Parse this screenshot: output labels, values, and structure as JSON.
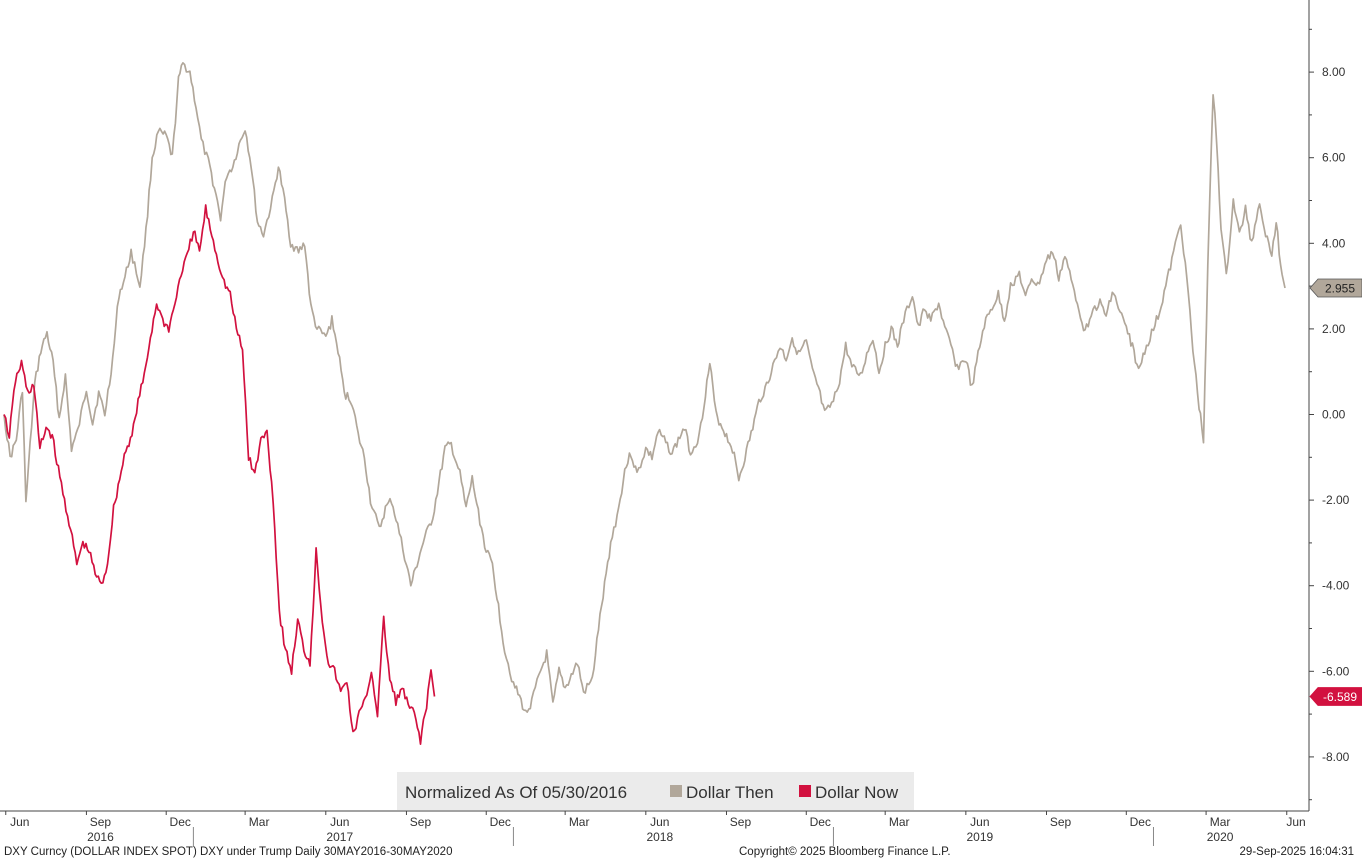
{
  "chart_data": {
    "type": "line",
    "y_ticks": [
      "8.00",
      "6.00",
      "4.00",
      "2.00",
      "0.00",
      "-2.00",
      "-4.00",
      "-6.00",
      "-8.00"
    ],
    "ylim": [
      -9.0,
      9.6
    ],
    "grid": false,
    "x_months": [
      "Jun",
      "Sep",
      "Dec",
      "Mar",
      "Jun",
      "Sep",
      "Dec",
      "Mar",
      "Jun",
      "Sep",
      "Dec",
      "Mar",
      "Jun",
      "Sep",
      "Dec",
      "Mar",
      "Jun"
    ],
    "x_years": [
      "2016",
      "2017",
      "2018",
      "2019",
      "2020"
    ],
    "legend": {
      "title": "Normalized As Of 05/30/2016",
      "placement": "bottom-center",
      "entries": [
        "Dollar Then",
        "Dollar Now"
      ]
    },
    "series": [
      {
        "name": "Dollar Then",
        "color": "#b1a79a",
        "last_value_label": "2.955",
        "points": [
          [
            "2016-05-30",
            0.0
          ],
          [
            "2016-06-06",
            -1.0
          ],
          [
            "2016-06-13",
            -0.6
          ],
          [
            "2016-06-20",
            0.6
          ],
          [
            "2016-06-24",
            -2.1
          ],
          [
            "2016-06-27",
            -1.2
          ],
          [
            "2016-07-04",
            0.7
          ],
          [
            "2016-07-11",
            1.5
          ],
          [
            "2016-07-18",
            1.9
          ],
          [
            "2016-07-25",
            1.2
          ],
          [
            "2016-08-01",
            -0.1
          ],
          [
            "2016-08-08",
            0.9
          ],
          [
            "2016-08-15",
            -0.8
          ],
          [
            "2016-08-22",
            -0.4
          ],
          [
            "2016-09-01",
            0.6
          ],
          [
            "2016-09-08",
            -0.2
          ],
          [
            "2016-09-15",
            0.5
          ],
          [
            "2016-09-22",
            0.0
          ],
          [
            "2016-10-01",
            1.3
          ],
          [
            "2016-10-08",
            2.8
          ],
          [
            "2016-10-15",
            3.2
          ],
          [
            "2016-10-22",
            3.8
          ],
          [
            "2016-11-01",
            3.0
          ],
          [
            "2016-11-08",
            4.3
          ],
          [
            "2016-11-15",
            6.0
          ],
          [
            "2016-11-22",
            6.6
          ],
          [
            "2016-12-01",
            6.5
          ],
          [
            "2016-12-08",
            6.0
          ],
          [
            "2016-12-15",
            7.8
          ],
          [
            "2016-12-20",
            8.2
          ],
          [
            "2016-12-28",
            8.0
          ],
          [
            "2017-01-04",
            7.2
          ],
          [
            "2017-01-10",
            6.4
          ],
          [
            "2017-01-18",
            5.9
          ],
          [
            "2017-01-25",
            5.3
          ],
          [
            "2017-02-01",
            4.6
          ],
          [
            "2017-02-08",
            5.6
          ],
          [
            "2017-02-15",
            5.8
          ],
          [
            "2017-02-22",
            6.3
          ],
          [
            "2017-03-01",
            6.7
          ],
          [
            "2017-03-08",
            5.8
          ],
          [
            "2017-03-15",
            4.5
          ],
          [
            "2017-03-22",
            4.2
          ],
          [
            "2017-04-01",
            5.0
          ],
          [
            "2017-04-08",
            5.8
          ],
          [
            "2017-04-15",
            5.0
          ],
          [
            "2017-04-22",
            4.0
          ],
          [
            "2017-05-01",
            3.8
          ],
          [
            "2017-05-08",
            4.0
          ],
          [
            "2017-05-15",
            2.5
          ],
          [
            "2017-05-22",
            2.0
          ],
          [
            "2017-06-01",
            1.8
          ],
          [
            "2017-06-08",
            2.2
          ],
          [
            "2017-06-15",
            1.5
          ],
          [
            "2017-06-22",
            0.5
          ],
          [
            "2017-07-01",
            0.3
          ],
          [
            "2017-07-08",
            -0.5
          ],
          [
            "2017-07-15",
            -1.0
          ],
          [
            "2017-07-22",
            -2.0
          ],
          [
            "2017-08-01",
            -2.7
          ],
          [
            "2017-08-08",
            -2.2
          ],
          [
            "2017-08-15",
            -2.0
          ],
          [
            "2017-08-22",
            -2.6
          ],
          [
            "2017-09-01",
            -3.5
          ],
          [
            "2017-09-06",
            -4.0
          ],
          [
            "2017-09-13",
            -3.5
          ],
          [
            "2017-09-20",
            -3.0
          ],
          [
            "2017-10-01",
            -2.4
          ],
          [
            "2017-10-08",
            -1.6
          ],
          [
            "2017-10-15",
            -0.8
          ],
          [
            "2017-10-22",
            -0.7
          ],
          [
            "2017-11-01",
            -1.4
          ],
          [
            "2017-11-08",
            -2.2
          ],
          [
            "2017-11-15",
            -1.5
          ],
          [
            "2017-11-22",
            -2.3
          ],
          [
            "2017-12-01",
            -3.2
          ],
          [
            "2017-12-08",
            -3.5
          ],
          [
            "2017-12-15",
            -4.5
          ],
          [
            "2017-12-22",
            -5.5
          ],
          [
            "2018-01-01",
            -6.3
          ],
          [
            "2018-01-08",
            -6.6
          ],
          [
            "2018-01-15",
            -7.0
          ],
          [
            "2018-01-22",
            -6.7
          ],
          [
            "2018-02-01",
            -6.0
          ],
          [
            "2018-02-08",
            -5.6
          ],
          [
            "2018-02-15",
            -6.8
          ],
          [
            "2018-02-22",
            -6.0
          ],
          [
            "2018-03-01",
            -6.4
          ],
          [
            "2018-03-08",
            -6.1
          ],
          [
            "2018-03-15",
            -5.8
          ],
          [
            "2018-03-22",
            -6.5
          ],
          [
            "2018-04-01",
            -6.2
          ],
          [
            "2018-04-08",
            -5.0
          ],
          [
            "2018-04-15",
            -4.0
          ],
          [
            "2018-04-22",
            -3.0
          ],
          [
            "2018-05-01",
            -2.2
          ],
          [
            "2018-05-08",
            -1.3
          ],
          [
            "2018-05-15",
            -0.9
          ],
          [
            "2018-05-22",
            -1.4
          ],
          [
            "2018-06-01",
            -0.8
          ],
          [
            "2018-06-08",
            -1.0
          ],
          [
            "2018-06-15",
            -0.4
          ],
          [
            "2018-06-22",
            -0.6
          ],
          [
            "2018-07-01",
            -0.9
          ],
          [
            "2018-07-08",
            -0.6
          ],
          [
            "2018-07-15",
            -0.3
          ],
          [
            "2018-07-22",
            -0.9
          ],
          [
            "2018-08-01",
            -0.5
          ],
          [
            "2018-08-08",
            0.5
          ],
          [
            "2018-08-13",
            1.2
          ],
          [
            "2018-08-20",
            0.0
          ],
          [
            "2018-09-01",
            -0.5
          ],
          [
            "2018-09-08",
            -0.8
          ],
          [
            "2018-09-15",
            -1.5
          ],
          [
            "2018-09-22",
            -1.0
          ],
          [
            "2018-10-01",
            -0.3
          ],
          [
            "2018-10-08",
            0.3
          ],
          [
            "2018-10-15",
            0.6
          ],
          [
            "2018-10-22",
            1.0
          ],
          [
            "2018-11-01",
            1.6
          ],
          [
            "2018-11-08",
            1.3
          ],
          [
            "2018-11-15",
            1.8
          ],
          [
            "2018-11-22",
            1.4
          ],
          [
            "2018-12-01",
            1.7
          ],
          [
            "2018-12-08",
            1.0
          ],
          [
            "2018-12-15",
            0.6
          ],
          [
            "2018-12-22",
            0.0
          ],
          [
            "2019-01-01",
            0.3
          ],
          [
            "2019-01-08",
            0.8
          ],
          [
            "2019-01-15",
            1.6
          ],
          [
            "2019-01-22",
            1.1
          ],
          [
            "2019-02-01",
            0.9
          ],
          [
            "2019-02-08",
            1.4
          ],
          [
            "2019-02-15",
            1.8
          ],
          [
            "2019-02-22",
            1.0
          ],
          [
            "2019-03-01",
            1.6
          ],
          [
            "2019-03-08",
            2.0
          ],
          [
            "2019-03-15",
            1.6
          ],
          [
            "2019-03-22",
            2.2
          ],
          [
            "2019-04-01",
            2.8
          ],
          [
            "2019-04-08",
            2.0
          ],
          [
            "2019-04-15",
            2.5
          ],
          [
            "2019-04-22",
            2.2
          ],
          [
            "2019-05-01",
            2.6
          ],
          [
            "2019-05-08",
            2.0
          ],
          [
            "2019-05-15",
            1.6
          ],
          [
            "2019-05-22",
            1.1
          ],
          [
            "2019-06-01",
            1.3
          ],
          [
            "2019-06-08",
            0.6
          ],
          [
            "2019-06-15",
            1.4
          ],
          [
            "2019-06-22",
            2.1
          ],
          [
            "2019-07-01",
            2.5
          ],
          [
            "2019-07-08",
            2.8
          ],
          [
            "2019-07-15",
            2.2
          ],
          [
            "2019-07-22",
            3.0
          ],
          [
            "2019-08-01",
            3.3
          ],
          [
            "2019-08-08",
            2.7
          ],
          [
            "2019-08-15",
            3.2
          ],
          [
            "2019-08-22",
            3.0
          ],
          [
            "2019-09-01",
            3.6
          ],
          [
            "2019-09-08",
            3.8
          ],
          [
            "2019-09-15",
            3.2
          ],
          [
            "2019-09-22",
            3.7
          ],
          [
            "2019-10-01",
            3.0
          ],
          [
            "2019-10-08",
            2.5
          ],
          [
            "2019-10-15",
            1.9
          ],
          [
            "2019-10-22",
            2.4
          ],
          [
            "2019-11-01",
            2.6
          ],
          [
            "2019-11-08",
            2.3
          ],
          [
            "2019-11-15",
            2.9
          ],
          [
            "2019-11-22",
            2.5
          ],
          [
            "2019-12-01",
            2.0
          ],
          [
            "2019-12-08",
            1.6
          ],
          [
            "2019-12-15",
            1.0
          ],
          [
            "2019-12-22",
            1.5
          ],
          [
            "2020-01-01",
            2.0
          ],
          [
            "2020-01-08",
            2.4
          ],
          [
            "2020-01-15",
            3.0
          ],
          [
            "2020-01-22",
            3.6
          ],
          [
            "2020-02-01",
            4.5
          ],
          [
            "2020-02-08",
            3.2
          ],
          [
            "2020-02-15",
            1.5
          ],
          [
            "2020-02-22",
            0.2
          ],
          [
            "2020-02-27",
            -0.6
          ],
          [
            "2020-03-03",
            3.5
          ],
          [
            "2020-03-09",
            7.5
          ],
          [
            "2020-03-13",
            6.4
          ],
          [
            "2020-03-18",
            4.4
          ],
          [
            "2020-03-24",
            3.2
          ],
          [
            "2020-04-01",
            5.0
          ],
          [
            "2020-04-08",
            4.2
          ],
          [
            "2020-04-15",
            4.8
          ],
          [
            "2020-04-22",
            4.0
          ],
          [
            "2020-05-01",
            5.0
          ],
          [
            "2020-05-08",
            4.2
          ],
          [
            "2020-05-15",
            3.8
          ],
          [
            "2020-05-20",
            4.5
          ],
          [
            "2020-05-25",
            3.5
          ],
          [
            "2020-05-30",
            2.955
          ]
        ]
      },
      {
        "name": "Dollar Now",
        "color": "#d2113f",
        "last_value_label": "-6.589",
        "points": [
          [
            "2016-05-30",
            0.0
          ],
          [
            "2016-06-05",
            -0.5
          ],
          [
            "2016-06-12",
            0.8
          ],
          [
            "2016-06-19",
            1.2
          ],
          [
            "2016-06-26",
            0.5
          ],
          [
            "2016-07-03",
            0.7
          ],
          [
            "2016-07-10",
            -0.8
          ],
          [
            "2016-07-17",
            -0.3
          ],
          [
            "2016-07-24",
            -0.5
          ],
          [
            "2016-07-31",
            -1.3
          ],
          [
            "2016-08-07",
            -2.0
          ],
          [
            "2016-08-14",
            -2.7
          ],
          [
            "2016-08-21",
            -3.5
          ],
          [
            "2016-08-28",
            -3.0
          ],
          [
            "2016-09-04",
            -3.2
          ],
          [
            "2016-09-11",
            -3.7
          ],
          [
            "2016-09-18",
            -4.0
          ],
          [
            "2016-09-25",
            -3.5
          ],
          [
            "2016-10-02",
            -2.2
          ],
          [
            "2016-10-09",
            -1.5
          ],
          [
            "2016-10-16",
            -0.8
          ],
          [
            "2016-10-23",
            -0.5
          ],
          [
            "2016-10-30",
            0.3
          ],
          [
            "2016-11-06",
            0.9
          ],
          [
            "2016-11-13",
            1.8
          ],
          [
            "2016-11-20",
            2.6
          ],
          [
            "2016-11-27",
            2.2
          ],
          [
            "2016-12-04",
            2.0
          ],
          [
            "2016-12-11",
            2.6
          ],
          [
            "2016-12-18",
            3.3
          ],
          [
            "2016-12-25",
            3.7
          ],
          [
            "2017-01-01",
            4.3
          ],
          [
            "2017-01-08",
            3.8
          ],
          [
            "2017-01-15",
            4.8
          ],
          [
            "2017-01-22",
            4.2
          ],
          [
            "2017-01-29",
            3.6
          ],
          [
            "2017-02-05",
            3.1
          ],
          [
            "2017-02-12",
            2.8
          ],
          [
            "2017-02-19",
            2.0
          ],
          [
            "2017-02-26",
            1.5
          ],
          [
            "2017-03-05",
            -1.0
          ],
          [
            "2017-03-12",
            -1.4
          ],
          [
            "2017-03-19",
            -0.6
          ],
          [
            "2017-03-26",
            -0.4
          ],
          [
            "2017-04-02",
            -2.0
          ],
          [
            "2017-04-09",
            -4.6
          ],
          [
            "2017-04-16",
            -5.5
          ],
          [
            "2017-04-23",
            -6.0
          ],
          [
            "2017-04-30",
            -4.8
          ],
          [
            "2017-05-07",
            -5.5
          ],
          [
            "2017-05-14",
            -5.8
          ],
          [
            "2017-05-21",
            -3.2
          ],
          [
            "2017-05-28",
            -4.8
          ],
          [
            "2017-06-04",
            -5.8
          ],
          [
            "2017-06-11",
            -6.0
          ],
          [
            "2017-06-18",
            -6.5
          ],
          [
            "2017-06-25",
            -6.2
          ],
          [
            "2017-07-02",
            -7.5
          ],
          [
            "2017-07-09",
            -7.0
          ],
          [
            "2017-07-16",
            -6.7
          ],
          [
            "2017-07-23",
            -6.0
          ],
          [
            "2017-07-30",
            -7.0
          ],
          [
            "2017-08-06",
            -4.8
          ],
          [
            "2017-08-13",
            -6.2
          ],
          [
            "2017-08-20",
            -6.7
          ],
          [
            "2017-08-27",
            -6.4
          ],
          [
            "2017-09-03",
            -6.8
          ],
          [
            "2017-09-10",
            -7.0
          ],
          [
            "2017-09-17",
            -7.6
          ],
          [
            "2017-09-24",
            -6.8
          ],
          [
            "2017-09-29",
            -6.0
          ],
          [
            "2017-10-03",
            -6.589
          ]
        ]
      }
    ]
  },
  "footer": {
    "left": "DXY Curncy (DOLLAR INDEX SPOT) DXY under Trump  Daily 30MAY2016-30MAY2020",
    "center": "Copyright© 2025 Bloomberg Finance L.P.",
    "right": "29-Sep-2025 16:04:31"
  }
}
